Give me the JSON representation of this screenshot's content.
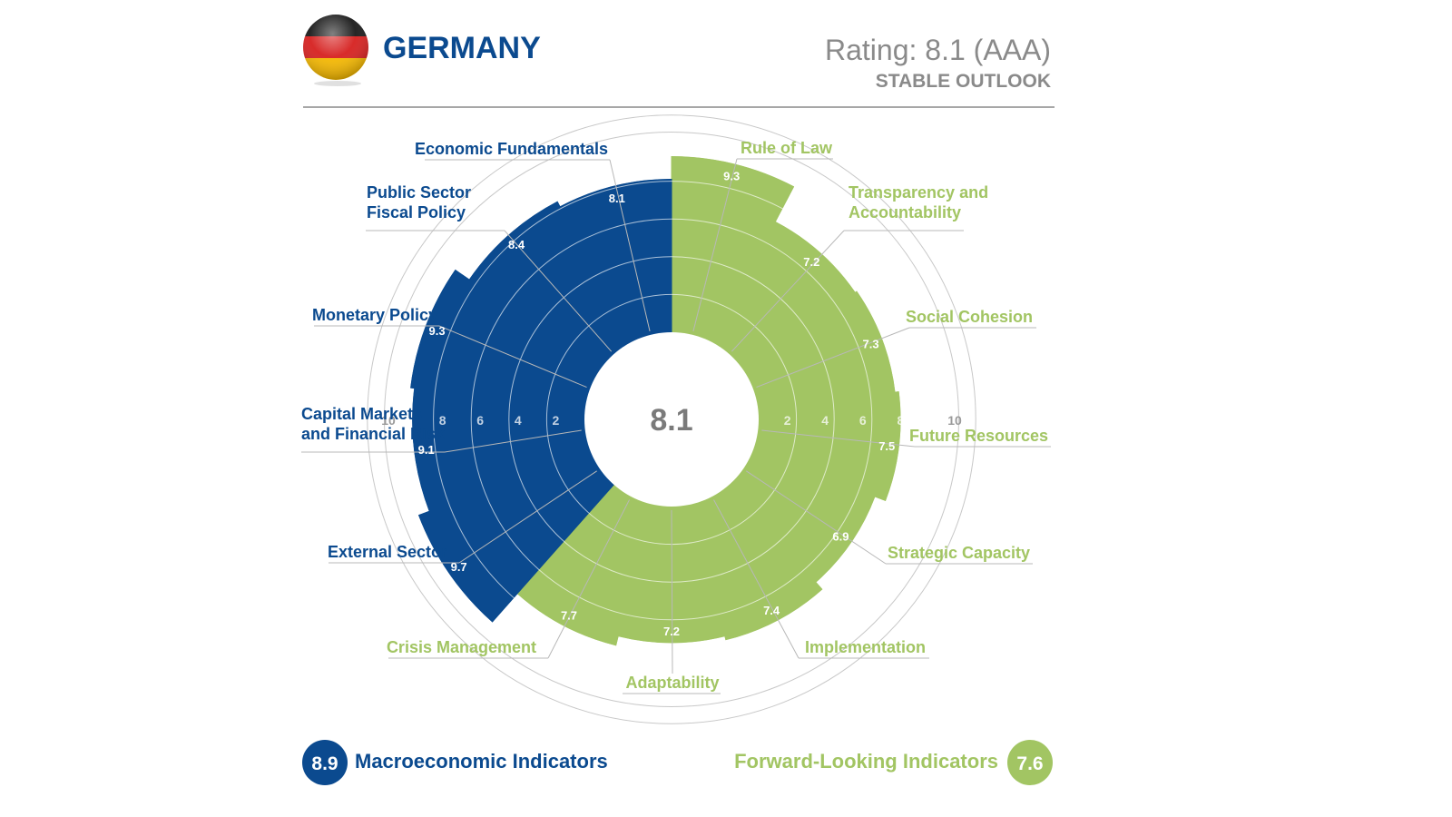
{
  "header": {
    "country": "GERMANY",
    "rating": "Rating: 8.1 (AAA)",
    "outlook": "STABLE OUTLOOK"
  },
  "flag_icon": "germany-flag-icon",
  "colors": {
    "macro": "#0b4a8f",
    "forward": "#a2c563",
    "grid": "#c8c8c8",
    "text_gray": "#8a8a8a",
    "tick_gray": "#9a9a9a"
  },
  "chart_data": {
    "type": "radial-bar",
    "center_value": "8.1",
    "rmax": 10,
    "ticks_left": [
      "10",
      "8",
      "6",
      "4",
      "2"
    ],
    "ticks_right": [
      "2",
      "4",
      "6",
      "8",
      "10"
    ],
    "groups": [
      {
        "name": "Macroeconomic Indicators",
        "score": "8.9",
        "color": "#0b4a8f",
        "categories": [
          {
            "label": "Economic Fundamentals",
            "value": 8.1
          },
          {
            "label": "Public Sector Fiscal Policy",
            "value": 8.4
          },
          {
            "label": "Monetary Policy",
            "value": 9.3
          },
          {
            "label": "Capital Markets and Financial Risk",
            "value": 9.1
          },
          {
            "label": "External Sector",
            "value": 9.7
          }
        ]
      },
      {
        "name": "Forward-Looking Indicators",
        "score": "7.6",
        "color": "#a2c563",
        "categories": [
          {
            "label": "Rule of Law",
            "value": 9.3
          },
          {
            "label": "Transparency and Accountability",
            "value": 7.2
          },
          {
            "label": "Social Cohesion",
            "value": 7.3
          },
          {
            "label": "Future Resources",
            "value": 7.5
          },
          {
            "label": "Strategic Capacity",
            "value": 6.9
          },
          {
            "label": "Implementation",
            "value": 7.4
          },
          {
            "label": "Adaptability",
            "value": 7.2
          },
          {
            "label": "Crisis Management",
            "value": 7.7
          }
        ]
      }
    ]
  }
}
